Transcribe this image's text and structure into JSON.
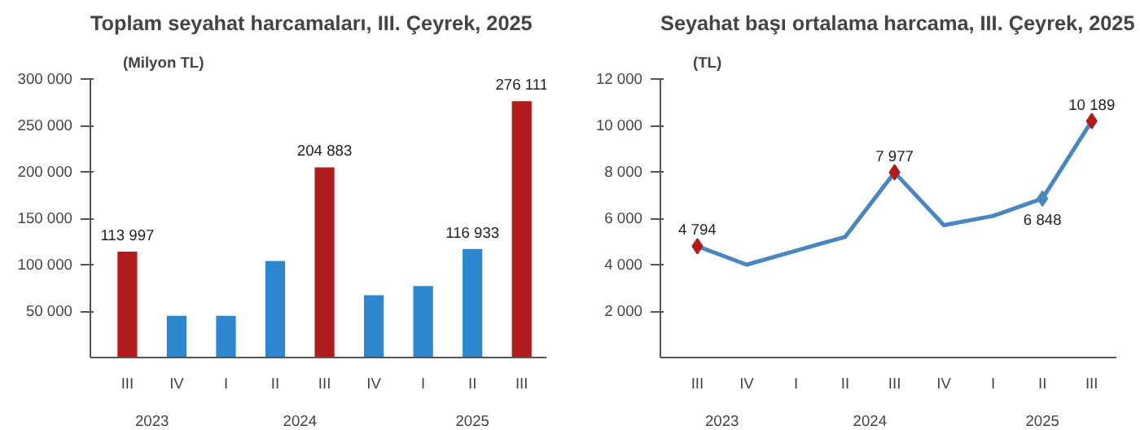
{
  "chart_data": [
    {
      "type": "bar",
      "title": "Toplam seyahat harcamaları, III. Çeyrek, 2025",
      "ylabel": "(Milyon TL)",
      "categories": [
        "III",
        "IV",
        "I",
        "II",
        "III",
        "IV",
        "I",
        "II",
        "III"
      ],
      "annotations": [
        "2023",
        "2024",
        "2025"
      ],
      "series": [
        {
          "colors": [
            "#b01c1c",
            "#2e86d0",
            "#2e86d0",
            "#2e86d0",
            "#b01c1c",
            "#2e86d0",
            "#2e86d0",
            "#2e86d0",
            "#b01c1c"
          ],
          "values": [
            113997,
            45000,
            45000,
            104000,
            204883,
            67000,
            77000,
            116933,
            276111
          ],
          "value_labels": [
            "113 997",
            null,
            null,
            null,
            "204 883",
            null,
            null,
            "116 933",
            "276 111"
          ]
        }
      ],
      "ylim": [
        0,
        300000
      ],
      "yticks": [
        {
          "value": 50000,
          "label": "50 000"
        },
        {
          "value": 100000,
          "label": "100 000"
        },
        {
          "value": 150000,
          "label": "150 000"
        },
        {
          "value": 200000,
          "label": "200 000"
        },
        {
          "value": 250000,
          "label": "250 000"
        },
        {
          "value": 300000,
          "label": "300 000"
        }
      ],
      "grid": false
    },
    {
      "type": "line",
      "title": "Seyahat başı ortalama harcama, III. Çeyrek, 2025",
      "ylabel": "(TL)",
      "categories": [
        "III",
        "IV",
        "I",
        "II",
        "III",
        "IV",
        "I",
        "II",
        "III"
      ],
      "annotations": [
        "2023",
        "2024",
        "2025"
      ],
      "series": [
        {
          "color": "#4a86c0",
          "values": [
            4794,
            4000,
            4600,
            5200,
            7977,
            5700,
            6100,
            6848,
            10189
          ],
          "value_labels": [
            "4 794",
            null,
            null,
            null,
            "7 977",
            null,
            null,
            "6 848",
            "10 189"
          ]
        },
        {
          "type": "scatter",
          "marker": "diamond",
          "colors": [
            "#b01c1c",
            null,
            null,
            null,
            "#b01c1c",
            null,
            null,
            "#4a86c0",
            "#b01c1c"
          ],
          "values": [
            4794,
            null,
            null,
            null,
            7977,
            null,
            null,
            6848,
            10189
          ]
        }
      ],
      "ylim": [
        0,
        12000
      ],
      "yticks": [
        {
          "value": 2000,
          "label": "2 000"
        },
        {
          "value": 4000,
          "label": "4 000"
        },
        {
          "value": 6000,
          "label": "6 000"
        },
        {
          "value": 8000,
          "label": "8 000"
        },
        {
          "value": 10000,
          "label": "10 000"
        },
        {
          "value": 12000,
          "label": "12 000"
        }
      ],
      "grid": false
    }
  ]
}
